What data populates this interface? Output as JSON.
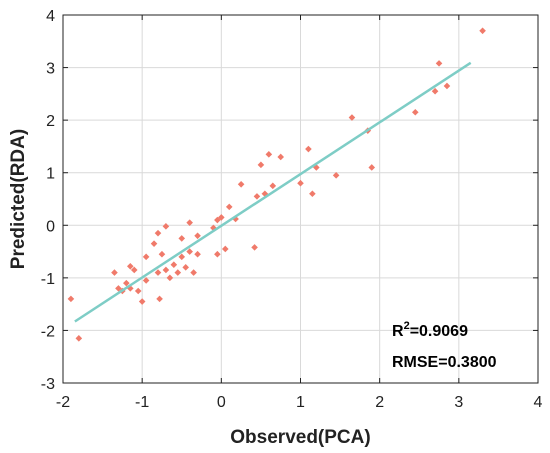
{
  "chart_data": {
    "type": "scatter",
    "xlabel": "Observed(PCA)",
    "ylabel": "Predicted(RDA)",
    "xlim": [
      -2,
      4
    ],
    "ylim": [
      -3,
      4
    ],
    "xticks": [
      "-2",
      "-1",
      "0",
      "1",
      "2",
      "3",
      "4"
    ],
    "yticks": [
      "-3",
      "-2",
      "-1",
      "0",
      "1",
      "2",
      "3",
      "4"
    ],
    "grid": true,
    "annotations": {
      "r2_prefix": "R",
      "r2_sup": "2",
      "r2_value": "=0.9069",
      "rmse": "RMSE=0.3800"
    },
    "fit_line": {
      "x": [
        -1.85,
        3.15
      ],
      "y": [
        -1.83,
        3.09
      ],
      "color": "#7ecdc6"
    },
    "point_color": "#f07a6a",
    "points": [
      [
        -1.9,
        -1.4
      ],
      [
        -1.8,
        -2.15
      ],
      [
        -1.35,
        -0.9
      ],
      [
        -1.3,
        -1.2
      ],
      [
        -1.25,
        -1.25
      ],
      [
        -1.2,
        -1.1
      ],
      [
        -1.15,
        -0.78
      ],
      [
        -1.15,
        -1.2
      ],
      [
        -1.1,
        -0.85
      ],
      [
        -1.05,
        -1.25
      ],
      [
        -1.0,
        -1.45
      ],
      [
        -0.95,
        -0.6
      ],
      [
        -0.95,
        -1.05
      ],
      [
        -0.85,
        -0.35
      ],
      [
        -0.8,
        -0.15
      ],
      [
        -0.8,
        -0.9
      ],
      [
        -0.78,
        -1.4
      ],
      [
        -0.75,
        -0.55
      ],
      [
        -0.7,
        -0.02
      ],
      [
        -0.7,
        -0.85
      ],
      [
        -0.65,
        -1.0
      ],
      [
        -0.6,
        -0.75
      ],
      [
        -0.55,
        -0.9
      ],
      [
        -0.5,
        -0.25
      ],
      [
        -0.5,
        -0.6
      ],
      [
        -0.45,
        -0.8
      ],
      [
        -0.4,
        0.05
      ],
      [
        -0.4,
        -0.5
      ],
      [
        -0.35,
        -0.9
      ],
      [
        -0.3,
        -0.55
      ],
      [
        -0.3,
        -0.2
      ],
      [
        -0.1,
        -0.05
      ],
      [
        -0.05,
        0.1
      ],
      [
        0.0,
        0.15
      ],
      [
        -0.05,
        -0.55
      ],
      [
        0.05,
        -0.45
      ],
      [
        0.1,
        0.35
      ],
      [
        0.18,
        0.12
      ],
      [
        0.25,
        0.78
      ],
      [
        0.42,
        -0.42
      ],
      [
        0.45,
        0.55
      ],
      [
        0.5,
        1.15
      ],
      [
        0.55,
        0.6
      ],
      [
        0.6,
        1.35
      ],
      [
        0.65,
        0.75
      ],
      [
        0.75,
        1.3
      ],
      [
        1.0,
        0.8
      ],
      [
        1.1,
        1.45
      ],
      [
        1.15,
        0.6
      ],
      [
        1.2,
        1.1
      ],
      [
        1.45,
        0.95
      ],
      [
        1.65,
        2.05
      ],
      [
        1.85,
        1.8
      ],
      [
        1.9,
        1.1
      ],
      [
        2.45,
        2.15
      ],
      [
        2.7,
        2.55
      ],
      [
        2.75,
        3.08
      ],
      [
        2.85,
        2.65
      ],
      [
        3.3,
        3.7
      ]
    ]
  }
}
